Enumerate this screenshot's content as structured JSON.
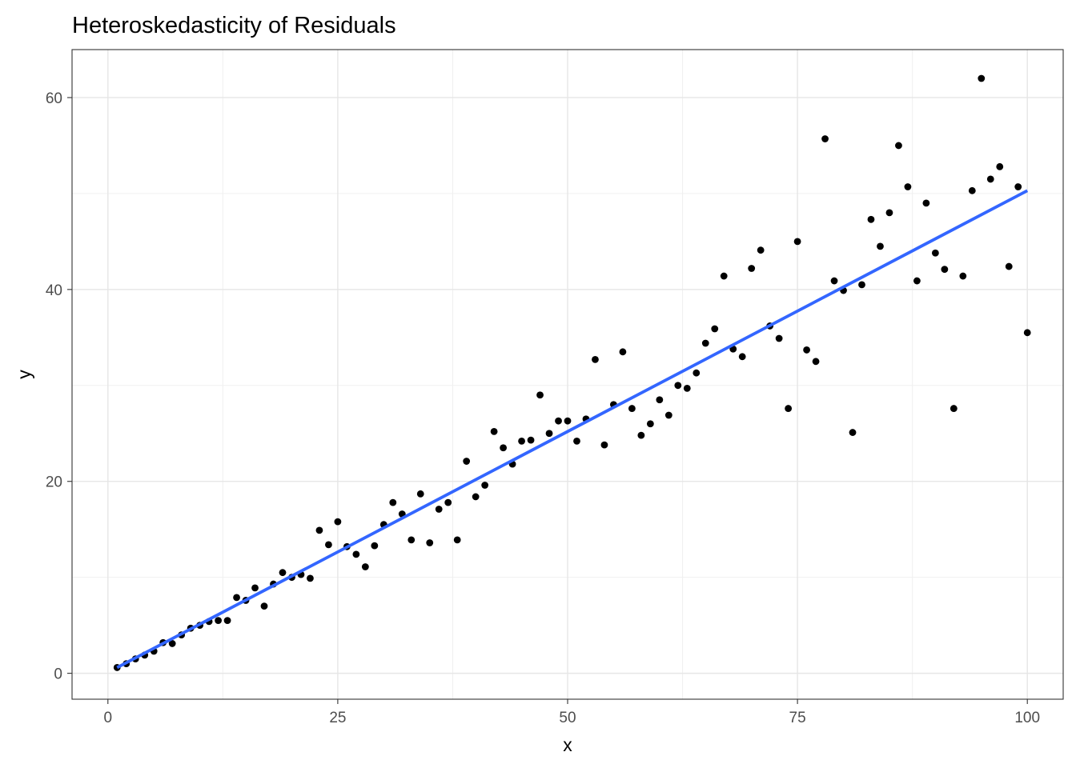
{
  "chart_data": {
    "type": "scatter",
    "title": "Heteroskedasticity of Residuals",
    "xlabel": "x",
    "ylabel": "y",
    "xlim": [
      -3.9,
      103.9
    ],
    "ylim": [
      -2.7,
      65
    ],
    "x_ticks": [
      0,
      25,
      50,
      75,
      100
    ],
    "x_tick_labels": [
      "0",
      "25",
      "50",
      "75",
      "100"
    ],
    "y_ticks": [
      0,
      20,
      40,
      60
    ],
    "y_tick_labels": [
      "0",
      "20",
      "40",
      "60"
    ],
    "x_minor_ticks": [
      12.5,
      37.5,
      62.5,
      87.5
    ],
    "y_minor_ticks": [
      10,
      30,
      50
    ],
    "grid": true,
    "legend": "none",
    "series": [
      {
        "type": "scatter",
        "color": "#000000",
        "points": [
          [
            1,
            0.6
          ],
          [
            2,
            1.0
          ],
          [
            3,
            1.5
          ],
          [
            4,
            1.9
          ],
          [
            5,
            2.3
          ],
          [
            6,
            3.2
          ],
          [
            7,
            3.1
          ],
          [
            8,
            4.0
          ],
          [
            9,
            4.7
          ],
          [
            10,
            5.0
          ],
          [
            11,
            5.4
          ],
          [
            12,
            5.5
          ],
          [
            13,
            5.5
          ],
          [
            14,
            7.9
          ],
          [
            15,
            7.6
          ],
          [
            16,
            8.9
          ],
          [
            17,
            7.0
          ],
          [
            18,
            9.3
          ],
          [
            19,
            10.5
          ],
          [
            20,
            10.0
          ],
          [
            21,
            10.3
          ],
          [
            22,
            9.9
          ],
          [
            23,
            14.9
          ],
          [
            24,
            13.4
          ],
          [
            25,
            15.8
          ],
          [
            26,
            13.2
          ],
          [
            27,
            12.4
          ],
          [
            28,
            11.1
          ],
          [
            29,
            13.3
          ],
          [
            30,
            15.5
          ],
          [
            31,
            17.8
          ],
          [
            32,
            16.6
          ],
          [
            33,
            13.9
          ],
          [
            34,
            18.7
          ],
          [
            35,
            13.6
          ],
          [
            36,
            17.1
          ],
          [
            37,
            17.8
          ],
          [
            38,
            13.9
          ],
          [
            39,
            22.1
          ],
          [
            40,
            18.4
          ],
          [
            41,
            19.6
          ],
          [
            42,
            25.2
          ],
          [
            43,
            23.5
          ],
          [
            44,
            21.8
          ],
          [
            45,
            24.2
          ],
          [
            46,
            24.3
          ],
          [
            47,
            29.0
          ],
          [
            48,
            25.0
          ],
          [
            49,
            26.3
          ],
          [
            50,
            26.3
          ],
          [
            51,
            24.2
          ],
          [
            52,
            26.5
          ],
          [
            53,
            32.7
          ],
          [
            54,
            23.8
          ],
          [
            55,
            28.0
          ],
          [
            56,
            33.5
          ],
          [
            57,
            27.6
          ],
          [
            58,
            24.8
          ],
          [
            59,
            26.0
          ],
          [
            60,
            28.5
          ],
          [
            61,
            26.9
          ],
          [
            62,
            30.0
          ],
          [
            63,
            29.7
          ],
          [
            64,
            31.3
          ],
          [
            65,
            34.4
          ],
          [
            66,
            35.9
          ],
          [
            67,
            41.4
          ],
          [
            68,
            33.8
          ],
          [
            69,
            33.0
          ],
          [
            70,
            42.2
          ],
          [
            71,
            44.1
          ],
          [
            72,
            36.2
          ],
          [
            73,
            34.9
          ],
          [
            74,
            27.6
          ],
          [
            75,
            45.0
          ],
          [
            76,
            33.7
          ],
          [
            77,
            32.5
          ],
          [
            78,
            55.7
          ],
          [
            79,
            40.9
          ],
          [
            80,
            39.9
          ],
          [
            81,
            25.1
          ],
          [
            82,
            40.5
          ],
          [
            83,
            47.3
          ],
          [
            84,
            44.5
          ],
          [
            85,
            48.0
          ],
          [
            86,
            55.0
          ],
          [
            87,
            50.7
          ],
          [
            88,
            40.9
          ],
          [
            89,
            49.0
          ],
          [
            90,
            43.8
          ],
          [
            91,
            42.1
          ],
          [
            92,
            27.6
          ],
          [
            93,
            41.4
          ],
          [
            94,
            50.3
          ],
          [
            95,
            62.0
          ],
          [
            96,
            51.5
          ],
          [
            97,
            52.8
          ],
          [
            98,
            42.4
          ],
          [
            99,
            50.7
          ],
          [
            100,
            35.5
          ]
        ]
      },
      {
        "type": "line",
        "color": "#3366FF",
        "points": [
          [
            1,
            0.6
          ],
          [
            100,
            50.3
          ]
        ]
      }
    ]
  }
}
